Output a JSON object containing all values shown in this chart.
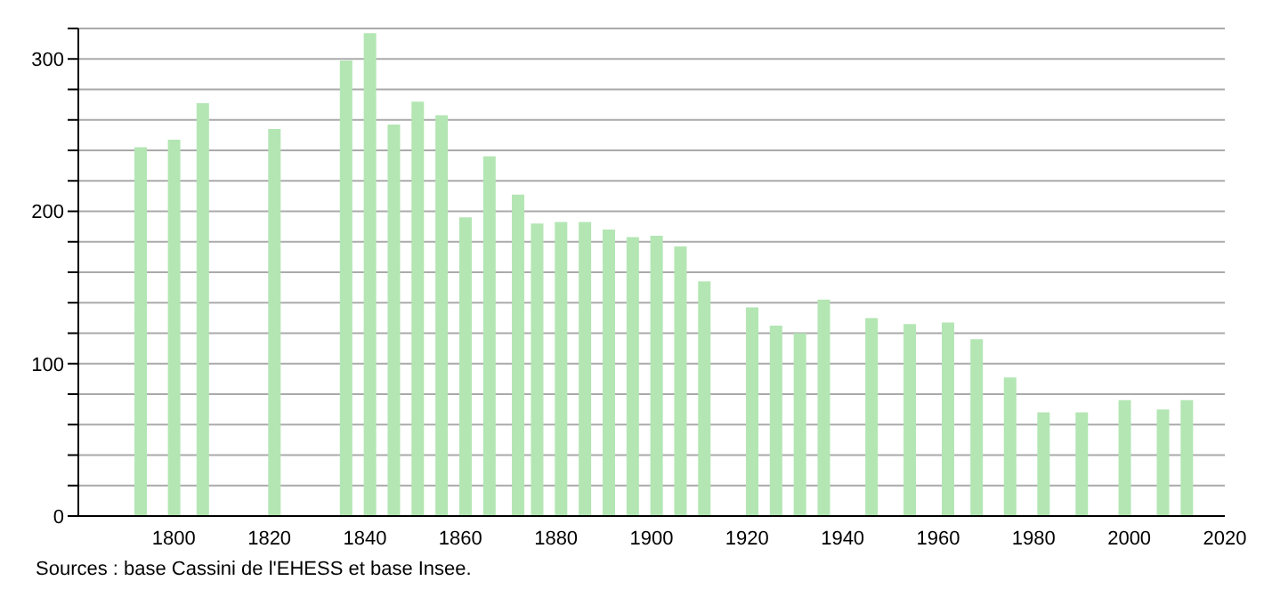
{
  "chart_data": {
    "type": "bar",
    "x": [
      1793,
      1800,
      1806,
      1821,
      1836,
      1841,
      1846,
      1851,
      1856,
      1861,
      1866,
      1872,
      1876,
      1881,
      1886,
      1891,
      1896,
      1901,
      1906,
      1911,
      1921,
      1926,
      1931,
      1936,
      1946,
      1954,
      1962,
      1968,
      1975,
      1982,
      1990,
      1999,
      2007,
      2012
    ],
    "values": [
      242,
      247,
      271,
      254,
      299,
      317,
      257,
      272,
      263,
      196,
      236,
      211,
      192,
      193,
      193,
      188,
      183,
      184,
      177,
      154,
      137,
      125,
      120,
      142,
      130,
      126,
      127,
      116,
      91,
      68,
      68,
      76,
      70,
      76
    ],
    "color": "#b3e6b3",
    "xlim": [
      1780,
      2020
    ],
    "xticks": [
      1800,
      1820,
      1840,
      1860,
      1880,
      1900,
      1920,
      1940,
      1960,
      1980,
      2000,
      2020
    ],
    "ylim": [
      0,
      320
    ],
    "yticks": [
      0,
      {
        "value": 20,
        "label": null
      },
      {
        "value": 40,
        "label": null
      },
      {
        "value": 60,
        "label": null
      },
      {
        "value": 80,
        "label": null
      },
      100,
      {
        "value": 120,
        "label": null
      },
      {
        "value": 140,
        "label": null
      },
      {
        "value": 160,
        "label": null
      },
      {
        "value": 180,
        "label": null
      },
      200,
      {
        "value": 220,
        "label": null
      },
      {
        "value": 240,
        "label": null
      },
      {
        "value": 260,
        "label": null
      },
      {
        "value": 280,
        "label": null
      },
      300,
      {
        "value": 320,
        "label": null
      }
    ],
    "grid": "y",
    "annotations": [
      "Sources : base Cassini de l'EHESS et base Insee."
    ]
  }
}
